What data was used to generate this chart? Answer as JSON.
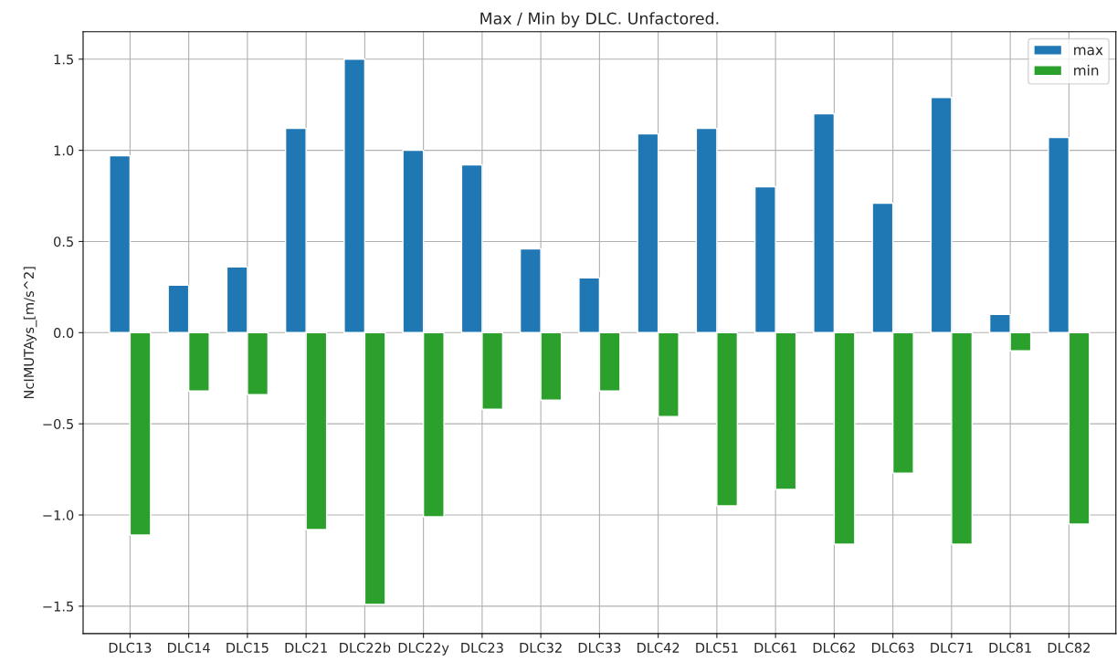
{
  "chart_data": {
    "type": "bar",
    "title": "Max / Min by DLC. Unfactored.",
    "ylabel": "NcIMUTAys_[m/s^2]",
    "categories": [
      "DLC13",
      "DLC14",
      "DLC15",
      "DLC21",
      "DLC22b",
      "DLC22y",
      "DLC23",
      "DLC32",
      "DLC33",
      "DLC42",
      "DLC51",
      "DLC61",
      "DLC62",
      "DLC63",
      "DLC71",
      "DLC81",
      "DLC82"
    ],
    "series": [
      {
        "name": "max",
        "color": "#1f77b4",
        "values": [
          0.97,
          0.26,
          0.36,
          1.12,
          1.5,
          1.0,
          0.92,
          0.46,
          0.3,
          1.09,
          1.12,
          0.8,
          1.2,
          0.71,
          1.29,
          0.1,
          1.07
        ]
      },
      {
        "name": "min",
        "color": "#2ca02c",
        "values": [
          -1.11,
          -0.32,
          -0.34,
          -1.08,
          -1.49,
          -1.01,
          -0.42,
          -0.37,
          -0.32,
          -0.46,
          -0.95,
          -0.86,
          -1.16,
          -0.77,
          -1.16,
          -0.1,
          -1.05
        ]
      }
    ],
    "ylim": [
      -1.65,
      1.65
    ],
    "yticks": [
      {
        "value": -1.5,
        "label": "−1.5"
      },
      {
        "value": -1.0,
        "label": "−1.0"
      },
      {
        "value": -0.5,
        "label": "−0.5"
      },
      {
        "value": 0,
        "label": "0.0"
      },
      {
        "value": 0.5,
        "label": "0.5"
      },
      {
        "value": 1.0,
        "label": "1.0"
      },
      {
        "value": 1.5,
        "label": "1.5"
      }
    ],
    "grid": true,
    "legend": "top right"
  }
}
